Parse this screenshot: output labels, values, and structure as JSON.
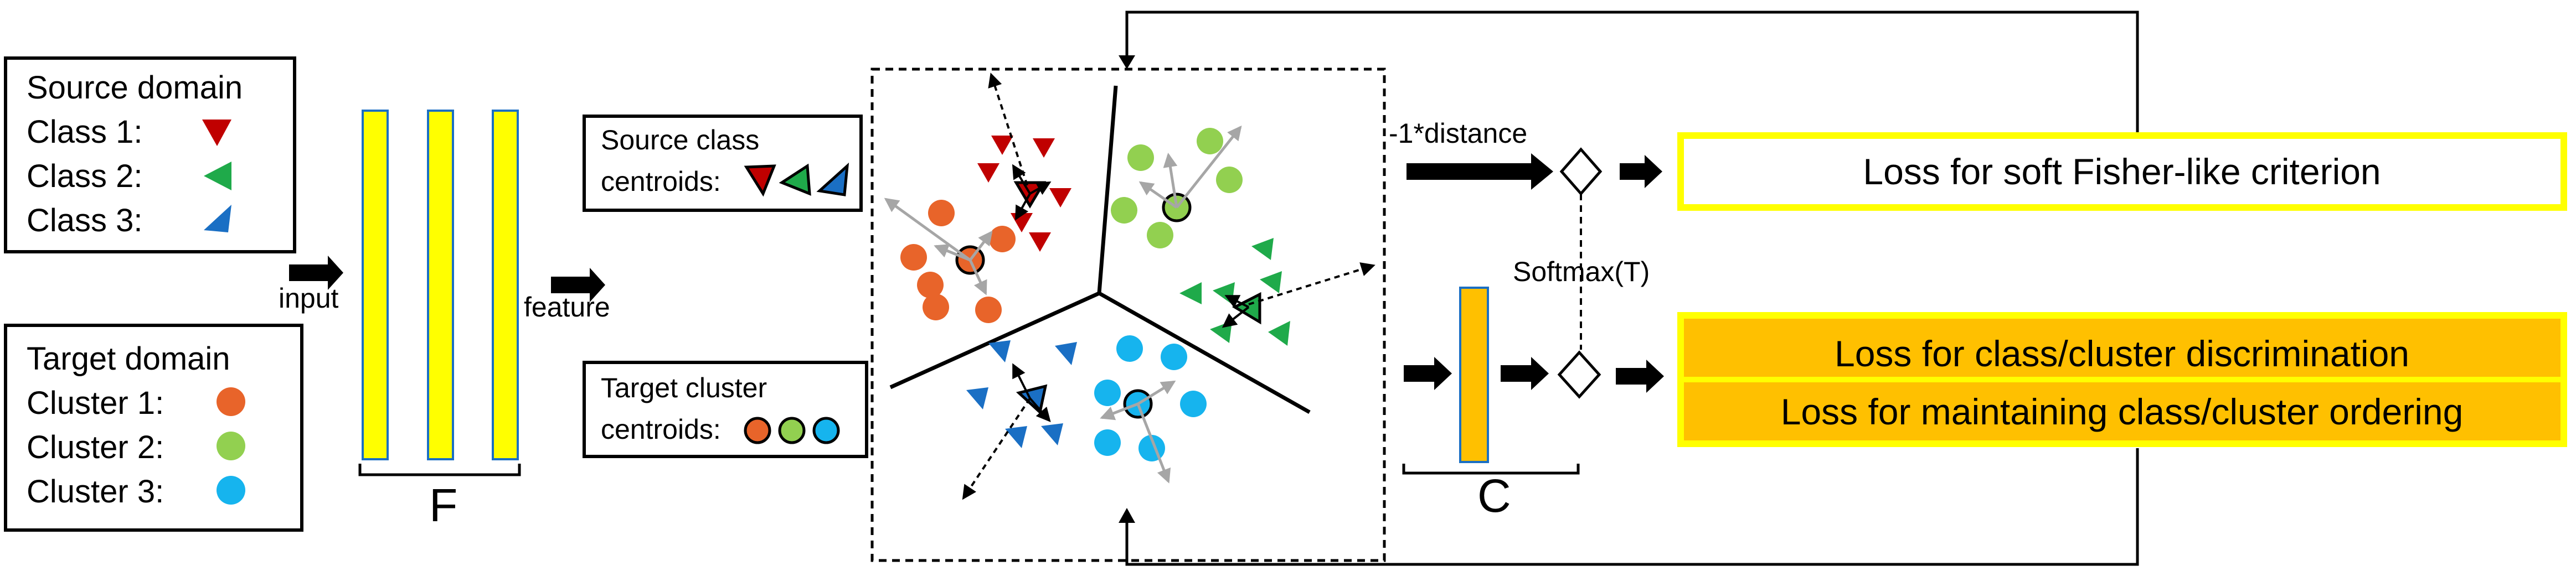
{
  "legend_source": {
    "title": "Source domain",
    "items": [
      {
        "label": "Class 1:",
        "color": "#c00000",
        "shape": "triangle"
      },
      {
        "label": "Class 2:",
        "color": "#1faa4a",
        "shape": "triangle"
      },
      {
        "label": "Class 3:",
        "color": "#1a6fc4",
        "shape": "triangle"
      }
    ]
  },
  "legend_target": {
    "title": "Target domain",
    "items": [
      {
        "label": "Cluster 1:",
        "color": "#e8642a",
        "shape": "circle"
      },
      {
        "label": "Cluster 2:",
        "color": "#92d050",
        "shape": "circle"
      },
      {
        "label": "Cluster 3:",
        "color": "#16b4ee",
        "shape": "circle"
      }
    ]
  },
  "labels": {
    "input": "input",
    "feature": "feature",
    "F": "F",
    "C": "C",
    "source_centroids_line1": "Source class",
    "source_centroids_line2": "centroids:",
    "target_centroids_line1": "Target cluster",
    "target_centroids_line2": "centroids:",
    "distance": "-1*distance",
    "softmax": "Softmax(T)"
  },
  "losses": {
    "fisher": "Loss for soft Fisher-like criterion",
    "discrimination": "Loss for class/cluster discrimination",
    "ordering": "Loss for maintaining class/cluster ordering"
  },
  "colors": {
    "yellow": "#ffff00",
    "orange": "#ffc000",
    "class1": "#c00000",
    "class2": "#1faa4a",
    "class3": "#1a6fc4",
    "cluster1": "#e8642a",
    "cluster2": "#92d050",
    "cluster3": "#16b4ee",
    "gray_arrow": "#a6a6a6"
  }
}
